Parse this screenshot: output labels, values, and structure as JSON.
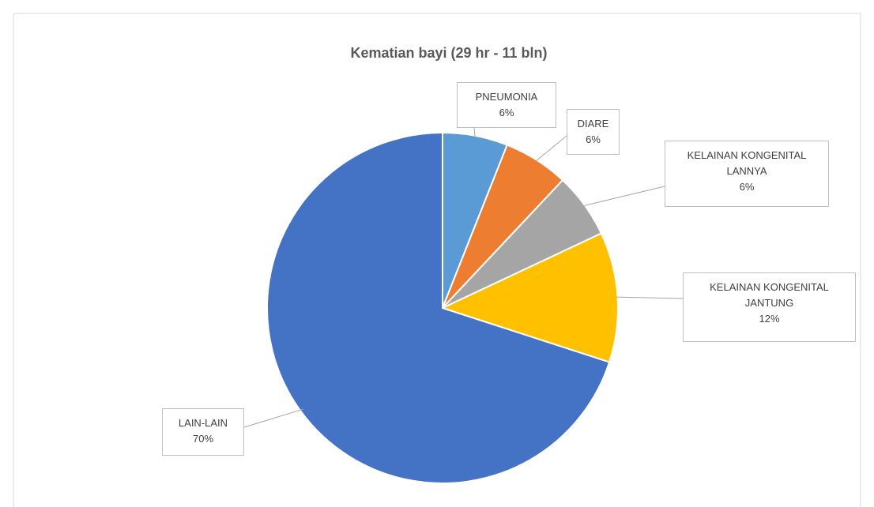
{
  "chart_data": {
    "type": "pie",
    "title": "Kematian bayi (29 hr - 11 bln)",
    "categories": [
      "PNEUMONIA",
      "DIARE",
      "KELAINAN KONGENITAL LANNYA",
      "KELAINAN KONGENITAL JANTUNG",
      "LAIN-LAIN"
    ],
    "values": [
      6,
      6,
      6,
      12,
      70
    ],
    "value_labels": [
      "6%",
      "6%",
      "6%",
      "12%",
      "70%"
    ],
    "colors": [
      "#5b9bd5",
      "#ed7d31",
      "#a5a5a5",
      "#ffc000",
      "#4472c4"
    ]
  }
}
